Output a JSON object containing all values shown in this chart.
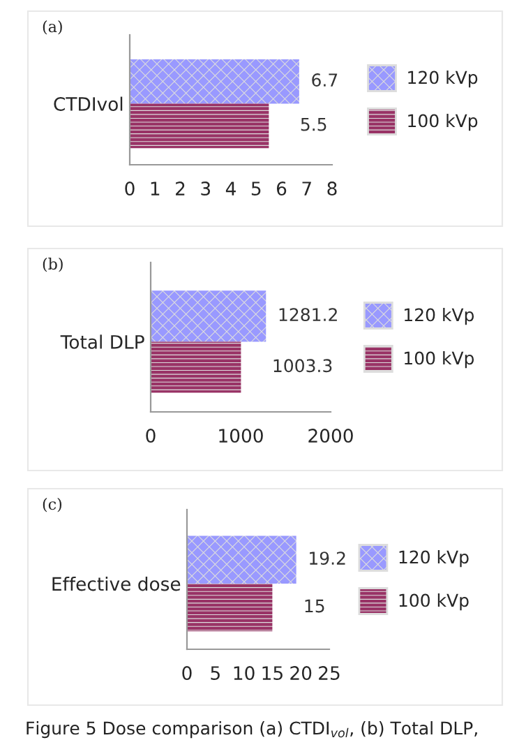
{
  "chart_data": [
    {
      "type": "bar",
      "orientation": "horizontal",
      "title": "(a)",
      "categories": [
        "CTDIvol"
      ],
      "series": [
        {
          "name": "120 kVp",
          "color": "#9999ff",
          "values": [
            6.7
          ]
        },
        {
          "name": "100 kVp",
          "color": "#993366",
          "values": [
            5.5
          ]
        }
      ],
      "xlim": [
        0,
        8
      ],
      "xticks": [
        0,
        1,
        2,
        3,
        4,
        5,
        6,
        7,
        8
      ],
      "data_labels": true,
      "legend": "right",
      "grid": false
    },
    {
      "type": "bar",
      "orientation": "horizontal",
      "title": "(b)",
      "categories": [
        "Total DLP"
      ],
      "series": [
        {
          "name": "120 kVp",
          "color": "#9999ff",
          "values": [
            1281.2
          ]
        },
        {
          "name": "100 kVp",
          "color": "#993366",
          "values": [
            1003.3
          ]
        }
      ],
      "xlim": [
        0,
        2000
      ],
      "xticks": [
        0,
        1000,
        2000
      ],
      "data_labels": true,
      "legend": "right",
      "grid": false
    },
    {
      "type": "bar",
      "orientation": "horizontal",
      "title": "(c)",
      "categories": [
        "Effective dose"
      ],
      "series": [
        {
          "name": "120 kVp",
          "color": "#9999ff",
          "values": [
            19.2
          ]
        },
        {
          "name": "100 kVp",
          "color": "#993366",
          "values": [
            15
          ]
        }
      ],
      "xlim": [
        0,
        25
      ],
      "xticks": [
        0,
        5,
        10,
        15,
        20,
        25
      ],
      "data_labels": true,
      "legend": "right",
      "grid": false,
      "annotations": [
        "Figure 5 Dose comparison (a) CTDI$_{vol}$, (b) Total DLP,"
      ]
    }
  ]
}
